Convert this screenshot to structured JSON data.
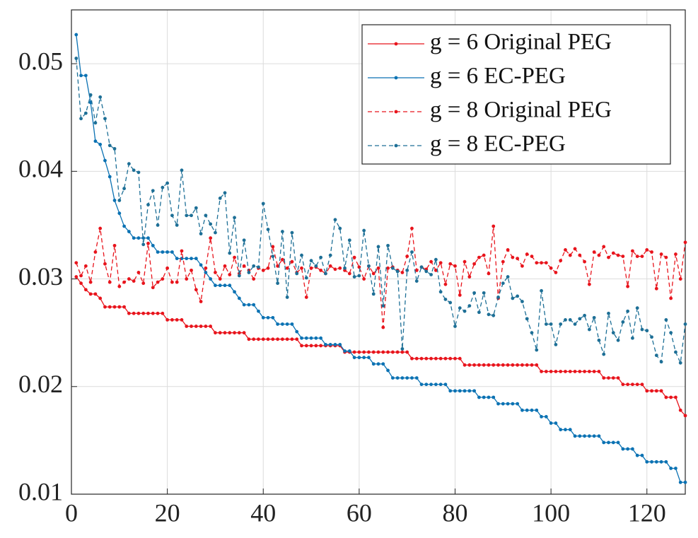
{
  "chart_data": {
    "type": "line",
    "x": [
      1,
      2,
      3,
      4,
      5,
      6,
      7,
      8,
      9,
      10,
      11,
      12,
      13,
      14,
      15,
      16,
      17,
      18,
      19,
      20,
      21,
      22,
      23,
      24,
      25,
      26,
      27,
      28,
      29,
      30,
      31,
      32,
      33,
      34,
      35,
      36,
      37,
      38,
      39,
      40,
      41,
      42,
      43,
      44,
      45,
      46,
      47,
      48,
      49,
      50,
      51,
      52,
      53,
      54,
      55,
      56,
      57,
      58,
      59,
      60,
      61,
      62,
      63,
      64,
      65,
      66,
      67,
      68,
      69,
      70,
      71,
      72,
      73,
      74,
      75,
      76,
      77,
      78,
      79,
      80,
      81,
      82,
      83,
      84,
      85,
      86,
      87,
      88,
      89,
      90,
      91,
      92,
      93,
      94,
      95,
      96,
      97,
      98,
      99,
      100,
      101,
      102,
      103,
      104,
      105,
      106,
      107,
      108,
      109,
      110,
      111,
      112,
      113,
      114,
      115,
      116,
      117,
      118,
      119,
      120,
      121,
      122,
      123,
      124,
      125,
      126,
      127,
      128
    ],
    "series": [
      {
        "name": "g = 6 Original PEG",
        "color": "#e8141c",
        "linestyle": "solid",
        "values": [
          0.0302,
          0.0296,
          0.029,
          0.0286,
          0.0286,
          0.0282,
          0.0274,
          0.0274,
          0.0274,
          0.0274,
          0.0274,
          0.0268,
          0.0268,
          0.0268,
          0.0268,
          0.0268,
          0.0268,
          0.0268,
          0.0268,
          0.0262,
          0.0262,
          0.0262,
          0.0262,
          0.0256,
          0.0256,
          0.0256,
          0.0256,
          0.0256,
          0.0256,
          0.025,
          0.025,
          0.025,
          0.025,
          0.025,
          0.025,
          0.025,
          0.0244,
          0.0244,
          0.0244,
          0.0244,
          0.0244,
          0.0244,
          0.0244,
          0.0244,
          0.0244,
          0.0244,
          0.0244,
          0.0238,
          0.0238,
          0.0238,
          0.0238,
          0.0238,
          0.0238,
          0.0238,
          0.0238,
          0.0238,
          0.0232,
          0.0232,
          0.0232,
          0.0232,
          0.0232,
          0.0232,
          0.0232,
          0.0232,
          0.0232,
          0.0232,
          0.0232,
          0.0232,
          0.0232,
          0.0232,
          0.0226,
          0.0226,
          0.0226,
          0.0226,
          0.0226,
          0.0226,
          0.0226,
          0.0226,
          0.0226,
          0.0226,
          0.0226,
          0.022,
          0.022,
          0.022,
          0.022,
          0.022,
          0.022,
          0.022,
          0.022,
          0.022,
          0.022,
          0.022,
          0.022,
          0.022,
          0.022,
          0.022,
          0.022,
          0.0214,
          0.0214,
          0.0214,
          0.0214,
          0.0214,
          0.0214,
          0.0214,
          0.0214,
          0.0214,
          0.0214,
          0.0214,
          0.0214,
          0.0214,
          0.0208,
          0.0208,
          0.0208,
          0.0208,
          0.0202,
          0.0202,
          0.0202,
          0.0202,
          0.0202,
          0.0196,
          0.0196,
          0.0196,
          0.0196,
          0.019,
          0.019,
          0.019,
          0.0178,
          0.0173
        ]
      },
      {
        "name": "g = 6 EC-PEG",
        "color": "#0b72b3",
        "linestyle": "solid",
        "values": [
          0.0527,
          0.0489,
          0.0489,
          0.0464,
          0.0428,
          0.0425,
          0.041,
          0.0395,
          0.0373,
          0.0361,
          0.0349,
          0.0344,
          0.0338,
          0.0338,
          0.0338,
          0.0338,
          0.0331,
          0.0325,
          0.0325,
          0.0325,
          0.0325,
          0.0319,
          0.0319,
          0.0319,
          0.0319,
          0.0319,
          0.0313,
          0.0306,
          0.03,
          0.0294,
          0.0294,
          0.0294,
          0.0294,
          0.0288,
          0.0282,
          0.0276,
          0.0276,
          0.0276,
          0.027,
          0.0264,
          0.0264,
          0.0264,
          0.0258,
          0.0258,
          0.0258,
          0.0258,
          0.0251,
          0.0245,
          0.0245,
          0.0245,
          0.0245,
          0.0245,
          0.0239,
          0.0239,
          0.0239,
          0.0239,
          0.0233,
          0.0233,
          0.0227,
          0.0227,
          0.0227,
          0.0227,
          0.0221,
          0.0221,
          0.0221,
          0.0215,
          0.0208,
          0.0208,
          0.0208,
          0.0208,
          0.0208,
          0.0208,
          0.0202,
          0.0202,
          0.0202,
          0.0202,
          0.0202,
          0.0202,
          0.0196,
          0.0196,
          0.0196,
          0.0196,
          0.0196,
          0.0196,
          0.019,
          0.019,
          0.019,
          0.019,
          0.0184,
          0.0184,
          0.0184,
          0.0184,
          0.0184,
          0.0178,
          0.0178,
          0.0178,
          0.0178,
          0.0172,
          0.0172,
          0.0166,
          0.0166,
          0.016,
          0.016,
          0.016,
          0.0154,
          0.0154,
          0.0154,
          0.0154,
          0.0154,
          0.0154,
          0.0148,
          0.0148,
          0.0148,
          0.0148,
          0.0142,
          0.0142,
          0.0142,
          0.0136,
          0.0136,
          0.013,
          0.013,
          0.013,
          0.013,
          0.013,
          0.0124,
          0.0124,
          0.0111,
          0.0111
        ]
      },
      {
        "name": "g = 8 Original PEG",
        "color": "#e8141c",
        "linestyle": "dashed",
        "values": [
          0.0315,
          0.0303,
          0.0312,
          0.0297,
          0.0325,
          0.0347,
          0.0314,
          0.0297,
          0.0331,
          0.0293,
          0.0297,
          0.03,
          0.0298,
          0.0306,
          0.0296,
          0.0333,
          0.0292,
          0.0297,
          0.03,
          0.031,
          0.0297,
          0.0297,
          0.0326,
          0.03,
          0.0308,
          0.029,
          0.0279,
          0.031,
          0.0338,
          0.0306,
          0.03,
          0.0312,
          0.0304,
          0.032,
          0.0305,
          0.0312,
          0.0308,
          0.03,
          0.031,
          0.0308,
          0.031,
          0.033,
          0.0312,
          0.0318,
          0.031,
          0.0316,
          0.0306,
          0.031,
          0.0283,
          0.031,
          0.0311,
          0.0308,
          0.0305,
          0.0312,
          0.0309,
          0.031,
          0.0308,
          0.0305,
          0.032,
          0.0311,
          0.03,
          0.0312,
          0.0305,
          0.031,
          0.0255,
          0.031,
          0.0311,
          0.0308,
          0.0306,
          0.0321,
          0.0347,
          0.0308,
          0.0311,
          0.0309,
          0.0316,
          0.0308,
          0.0315,
          0.0295,
          0.0314,
          0.0312,
          0.0285,
          0.0316,
          0.0302,
          0.0314,
          0.032,
          0.0322,
          0.0305,
          0.0349,
          0.0282,
          0.0316,
          0.0327,
          0.032,
          0.0319,
          0.0312,
          0.0323,
          0.0321,
          0.0315,
          0.0315,
          0.0315,
          0.031,
          0.0306,
          0.0317,
          0.0327,
          0.0322,
          0.0328,
          0.0322,
          0.0316,
          0.0295,
          0.0325,
          0.0322,
          0.033,
          0.032,
          0.0324,
          0.0322,
          0.0321,
          0.0293,
          0.0326,
          0.0321,
          0.0321,
          0.0327,
          0.0325,
          0.0291,
          0.0323,
          0.032,
          0.0282,
          0.0323,
          0.03,
          0.0334
        ]
      },
      {
        "name": "g = 8 EC-PEG",
        "color": "#1d6f96",
        "linestyle": "dashed",
        "values": [
          0.0505,
          0.0449,
          0.0454,
          0.0471,
          0.0445,
          0.0469,
          0.0449,
          0.0424,
          0.0421,
          0.0373,
          0.0384,
          0.0407,
          0.0401,
          0.0399,
          0.0332,
          0.0369,
          0.0382,
          0.035,
          0.0385,
          0.0389,
          0.0359,
          0.035,
          0.0401,
          0.0359,
          0.0359,
          0.0366,
          0.0342,
          0.0359,
          0.0351,
          0.0343,
          0.0375,
          0.038,
          0.0324,
          0.0357,
          0.0303,
          0.0336,
          0.0306,
          0.0312,
          0.0311,
          0.037,
          0.0346,
          0.0321,
          0.0296,
          0.0344,
          0.0283,
          0.0343,
          0.0305,
          0.0322,
          0.0301,
          0.0317,
          0.0312,
          0.032,
          0.0305,
          0.0322,
          0.0355,
          0.0347,
          0.031,
          0.0336,
          0.0302,
          0.0303,
          0.0345,
          0.0312,
          0.0286,
          0.033,
          0.0275,
          0.0331,
          0.031,
          0.0307,
          0.0235,
          0.0308,
          0.0325,
          0.0298,
          0.0311,
          0.0307,
          0.0304,
          0.0318,
          0.0288,
          0.0281,
          0.0278,
          0.0256,
          0.0273,
          0.027,
          0.0275,
          0.0287,
          0.0269,
          0.0287,
          0.0267,
          0.0266,
          0.0283,
          0.0296,
          0.0302,
          0.0282,
          0.0284,
          0.0279,
          0.0263,
          0.025,
          0.0234,
          0.0289,
          0.0258,
          0.0258,
          0.0239,
          0.0258,
          0.0262,
          0.0262,
          0.0258,
          0.0263,
          0.0266,
          0.0253,
          0.0264,
          0.0243,
          0.023,
          0.0268,
          0.025,
          0.0243,
          0.026,
          0.027,
          0.0245,
          0.0273,
          0.0253,
          0.0252,
          0.0246,
          0.0229,
          0.0223,
          0.0262,
          0.025,
          0.0232,
          0.0222,
          0.0258
        ]
      }
    ],
    "xlim": [
      0,
      128
    ],
    "ylim": [
      0.01,
      0.055
    ],
    "xticks": [
      0,
      20,
      40,
      60,
      80,
      100,
      120
    ],
    "yticks": [
      0.01,
      0.02,
      0.03,
      0.04,
      0.05
    ],
    "grid": true,
    "legend": "upper right"
  }
}
